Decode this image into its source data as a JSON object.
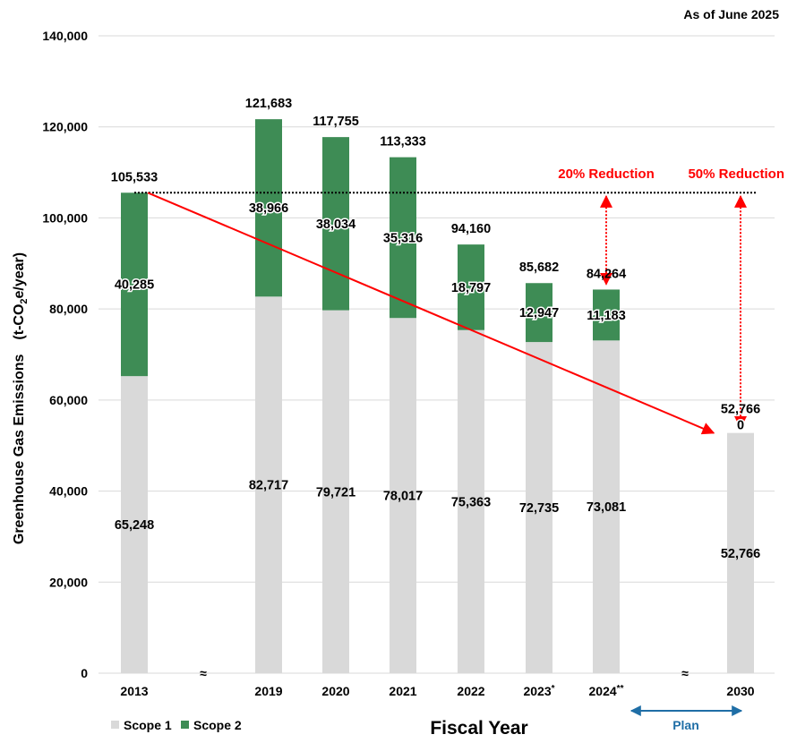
{
  "chart_data": {
    "type": "bar",
    "stacked": true,
    "as_of_note": "As of June 2025",
    "xlabel": "Fiscal Year",
    "ylabel_main": "Greenhouse Gas Emissions　(t-CO",
    "ylabel_sub": "2",
    "ylabel_tail": "e/year)",
    "ylim": [
      0,
      140000
    ],
    "yticks": [
      0,
      20000,
      40000,
      60000,
      80000,
      100000,
      120000,
      140000
    ],
    "ytick_labels": [
      "0",
      "20,000",
      "40,000",
      "60,000",
      "80,000",
      "100,000",
      "120,000",
      "140,000"
    ],
    "grid": true,
    "legend_position": "bottom-left",
    "categories": [
      "2013",
      "2019",
      "2020",
      "2021",
      "2022",
      "2023",
      "2024",
      "2030"
    ],
    "category_labels": [
      {
        "base": "2013",
        "sup": ""
      },
      {
        "base": "2019",
        "sup": ""
      },
      {
        "base": "2020",
        "sup": ""
      },
      {
        "base": "2021",
        "sup": ""
      },
      {
        "base": "2022",
        "sup": ""
      },
      {
        "base": "2023",
        "sup": "*"
      },
      {
        "base": "2024",
        "sup": "**"
      },
      {
        "base": "2030",
        "sup": ""
      }
    ],
    "series": [
      {
        "name": "Scope 1",
        "color": "#d9d9d9",
        "values": [
          65248,
          82717,
          79721,
          78017,
          75363,
          72735,
          73081,
          52766
        ],
        "labels": [
          "65,248",
          "82,717",
          "79,721",
          "78,017",
          "75,363",
          "72,735",
          "73,081",
          "52,766"
        ]
      },
      {
        "name": "Scope 2",
        "color": "#3e8c55",
        "values": [
          40285,
          38966,
          38034,
          35316,
          18797,
          12947,
          11183,
          0
        ],
        "labels": [
          "40,285",
          "38,966",
          "38,034",
          "35,316",
          "18,797",
          "12,947",
          "11,183",
          "0"
        ]
      }
    ],
    "totals": [
      105533,
      121683,
      117755,
      113333,
      94160,
      85682,
      84264,
      52766
    ],
    "total_labels": [
      "105,533",
      "121,683",
      "117,755",
      "113,333",
      "94,160",
      "85,682",
      "84,264",
      "52,766"
    ],
    "axis_break_symbol": "≈",
    "baseline_value": 105533,
    "trend_from": {
      "category": "2013",
      "value": 105533
    },
    "trend_to": {
      "category": "2030",
      "value": 52766
    },
    "trend_color": "#ff0000",
    "annotations": [
      {
        "text": "20% Reduction",
        "category": "2024",
        "from": 105533,
        "to": 84264,
        "color": "#ff0000"
      },
      {
        "text": "50% Reduction",
        "category": "2030",
        "from": 105533,
        "to": 52766,
        "color": "#ff0000"
      }
    ],
    "plan_label": "Plan",
    "plan_color": "#1f6ea6"
  }
}
